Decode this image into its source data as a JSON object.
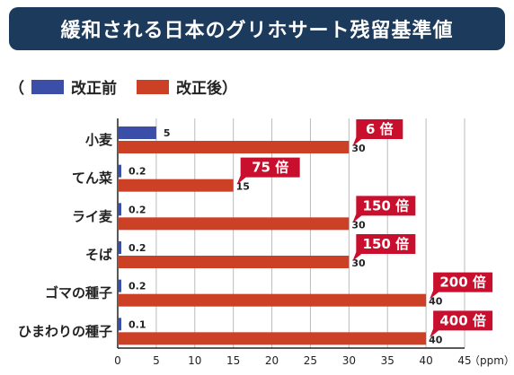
{
  "title": "緩和される日本のグリホサート残留基準値",
  "legend": {
    "open_paren": "（",
    "close_paren": "）",
    "before_label": "改正前",
    "after_label": "改正後"
  },
  "colors": {
    "title_bg": "#1b3a5c",
    "before": "#3c4fa8",
    "after": "#cc4126",
    "badge": "#c8102e",
    "grid": "#bbbbbb"
  },
  "chart_data": {
    "type": "bar",
    "orientation": "horizontal",
    "categories": [
      "小麦",
      "てん菜",
      "ライ麦",
      "そば",
      "ゴマの種子",
      "ひまわりの種子"
    ],
    "series": [
      {
        "name": "改正前",
        "values": [
          5,
          0.2,
          0.2,
          0.2,
          0.2,
          0.1
        ]
      },
      {
        "name": "改正後",
        "values": [
          30,
          15,
          30,
          30,
          40,
          40
        ]
      }
    ],
    "annotations": [
      "6 倍",
      "75 倍",
      "150 倍",
      "150 倍",
      "200 倍",
      "400 倍"
    ],
    "x_ticks": [
      0,
      5,
      10,
      15,
      20,
      25,
      30,
      35,
      40,
      45
    ],
    "x_unit": "（ppm）",
    "xlim": [
      0,
      45
    ],
    "grid": true
  }
}
